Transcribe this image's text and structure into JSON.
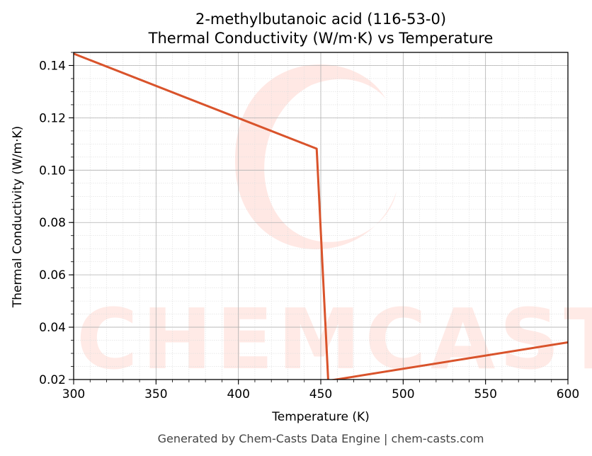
{
  "chart_data": {
    "type": "line",
    "title": "2-methylbutanoic acid (116-53-0)",
    "subtitle": "Thermal Conductivity (W/m·K) vs Temperature",
    "xlabel": "Temperature (K)",
    "ylabel": "Thermal Conductivity (W/m·K)",
    "xlim": [
      300,
      600
    ],
    "ylim": [
      0.02,
      0.145
    ],
    "xticks": [
      300,
      350,
      400,
      450,
      500,
      550,
      600
    ],
    "yticks": [
      0.02,
      0.04,
      0.06,
      0.08,
      0.1,
      0.12,
      0.14
    ],
    "ytick_labels": [
      "0.02",
      "0.04",
      "0.06",
      "0.08",
      "0.10",
      "0.12",
      "0.14"
    ],
    "grid": true,
    "series": [
      {
        "color": "#d9532b",
        "x": [
          300,
          447.5,
          454.5,
          600
        ],
        "y": [
          0.1445,
          0.1082,
          0.0195,
          0.0342
        ]
      }
    ]
  },
  "watermark": {
    "text": "CHEMCASTS",
    "color": "#ffd9d2"
  },
  "footer": "Generated by Chem-Casts Data Engine | chem-casts.com"
}
